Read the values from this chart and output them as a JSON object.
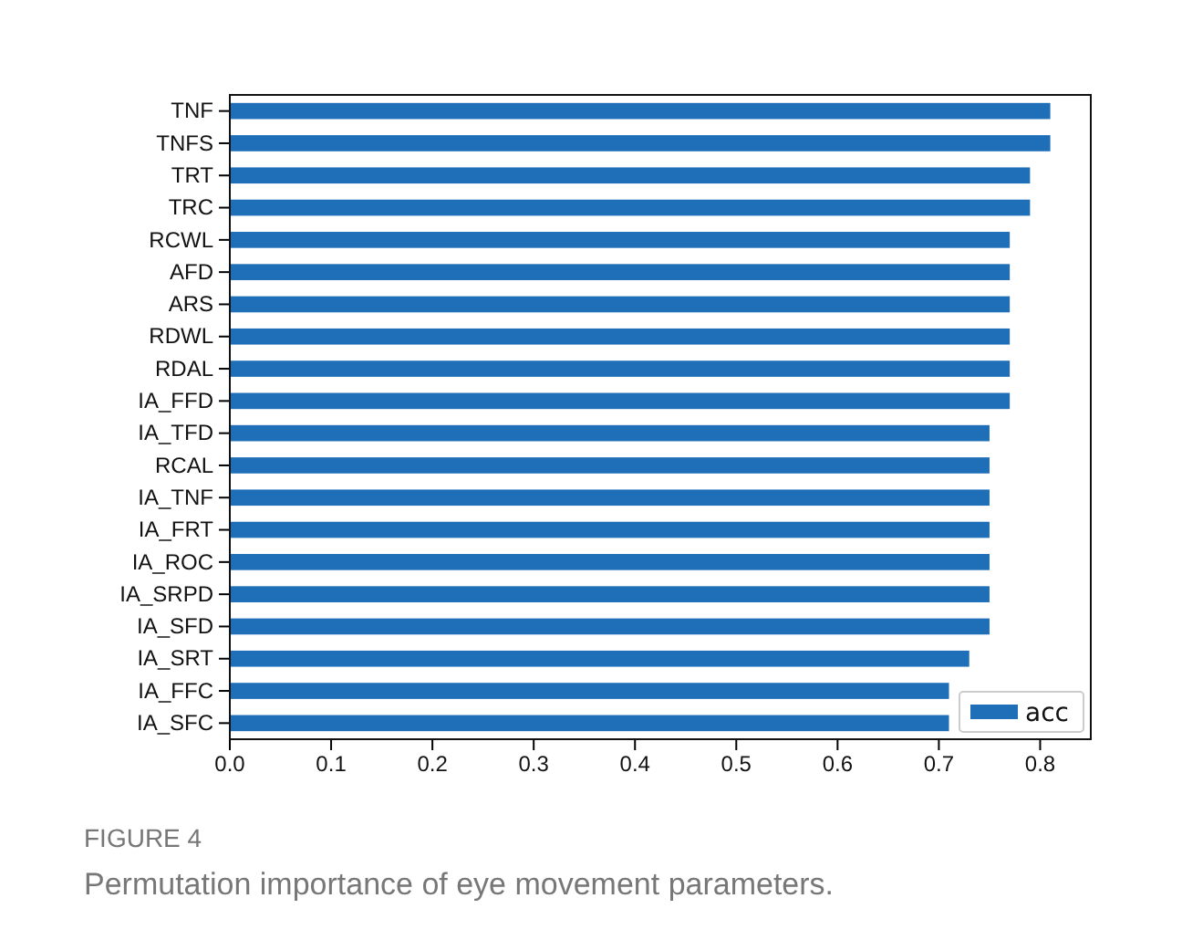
{
  "chart_data": {
    "type": "bar",
    "orientation": "horizontal",
    "categories": [
      "TNF",
      "TNFS",
      "TRT",
      "TRC",
      "RCWL",
      "AFD",
      "ARS",
      "RDWL",
      "RDAL",
      "IA_FFD",
      "IA_TFD",
      "RCAL",
      "IA_TNF",
      "IA_FRT",
      "IA_ROC",
      "IA_SRPD",
      "IA_SFD",
      "IA_SRT",
      "IA_FFC",
      "IA_SFC"
    ],
    "series": [
      {
        "name": "acc",
        "color": "#1f6fb8",
        "values": [
          0.81,
          0.81,
          0.79,
          0.79,
          0.77,
          0.77,
          0.77,
          0.77,
          0.77,
          0.77,
          0.75,
          0.75,
          0.75,
          0.75,
          0.75,
          0.75,
          0.75,
          0.73,
          0.71,
          0.71
        ]
      }
    ],
    "xlim": [
      0,
      0.85
    ],
    "xticks": [
      {
        "value": 0,
        "label": "0.0"
      },
      0.1,
      0.2,
      0.3,
      0.4,
      0.5,
      0.6,
      0.7,
      0.8
    ],
    "legend": "bottom right",
    "grid": false,
    "annotations": [
      "FIGURE 4",
      "Permutation importance of eye movement parameters."
    ]
  }
}
